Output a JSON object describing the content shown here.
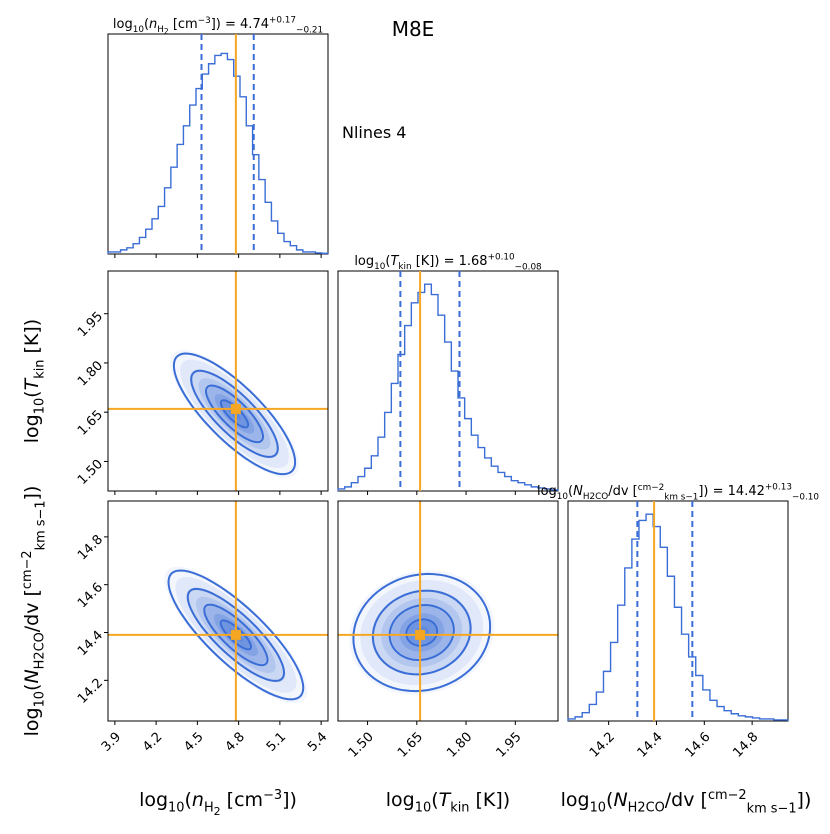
{
  "chart_data": {
    "type": "corner",
    "title": "M8E",
    "annotation": "Nlines 4",
    "colors": {
      "contour": "#3a6ed6",
      "truth": "#f5a623",
      "fill": "#3a6ed6",
      "axis": "#000000"
    },
    "params": [
      {
        "id": "nH2",
        "label": {
          "pre": "log",
          "sub1": "10",
          "mid": "(n",
          "sub2": "H",
          "sub3": "2",
          "post": " [cm",
          "sup": "−3",
          "end": "])"
        },
        "title": {
          "pre": "log",
          "sub1": "10",
          "mid": "(n",
          "sub2": "H",
          "sub3": "2",
          "post": " [cm",
          "sup": "−3",
          "end": "]) = 4.74",
          "sup2": "+0.17",
          "sub4": "−0.21"
        },
        "range": [
          3.85,
          5.45
        ],
        "ticks": [
          "3.9",
          "4.2",
          "4.5",
          "4.8",
          "5.1",
          "5.4"
        ],
        "tick_values": [
          3.9,
          4.2,
          4.5,
          4.8,
          5.1,
          5.4
        ],
        "median": 4.74,
        "err_plus": 0.17,
        "err_minus": 0.21,
        "truth": 4.78,
        "hist": [
          0.01,
          0.01,
          0.02,
          0.03,
          0.05,
          0.08,
          0.12,
          0.17,
          0.23,
          0.32,
          0.42,
          0.53,
          0.62,
          0.72,
          0.8,
          0.87,
          0.92,
          0.96,
          0.97,
          0.94,
          0.86,
          0.76,
          0.62,
          0.48,
          0.36,
          0.25,
          0.16,
          0.1,
          0.06,
          0.04,
          0.02,
          0.01,
          0.01,
          0.005,
          0.003
        ]
      },
      {
        "id": "Tkin",
        "label": {
          "pre": "log",
          "sub1": "10",
          "mid": "(T",
          "sub2": "kin",
          "post": " [K])"
        },
        "title": {
          "pre": "log",
          "sub1": "10",
          "mid": "(T",
          "sub2": "kin",
          "post": " [K]) = 1.68",
          "sup2": "+0.10",
          "sub4": "−0.08"
        },
        "range": [
          1.41,
          2.08
        ],
        "ticks": [
          "1.50",
          "1.65",
          "1.80",
          "1.95"
        ],
        "tick_values": [
          1.5,
          1.65,
          1.8,
          1.95
        ],
        "median": 1.68,
        "err_plus": 0.1,
        "err_minus": 0.08,
        "truth": 1.66,
        "hist": [
          0.01,
          0.02,
          0.04,
          0.07,
          0.11,
          0.17,
          0.26,
          0.38,
          0.52,
          0.66,
          0.8,
          0.91,
          0.96,
          1.0,
          0.95,
          0.85,
          0.72,
          0.58,
          0.45,
          0.35,
          0.27,
          0.21,
          0.16,
          0.12,
          0.09,
          0.07,
          0.05,
          0.04,
          0.03,
          0.02,
          0.015,
          0.01,
          0.005
        ]
      },
      {
        "id": "NH2CO",
        "label": {
          "pre": "log",
          "sub1": "10",
          "mid": "(N",
          "sub2": "H2CO",
          "post": "/dv [",
          "frac_num": "cm−2",
          "frac_den": "km s−1",
          "end": "])"
        },
        "title": {
          "pre": "log",
          "sub1": "10",
          "mid": "(N",
          "sub2": "H2CO",
          "post": "/dv [",
          "frac_num": "cm−2",
          "frac_den": "km s−1",
          "end": "]) = 14.42",
          "sup2": "+0.13",
          "sub4": "−0.10"
        },
        "range": [
          14.03,
          14.95
        ],
        "ticks": [
          "14.2",
          "14.4",
          "14.6",
          "14.8"
        ],
        "tick_values": [
          14.2,
          14.4,
          14.6,
          14.8
        ],
        "median": 14.42,
        "err_plus": 0.13,
        "err_minus": 0.1,
        "truth": 14.39,
        "hist": [
          0.01,
          0.02,
          0.04,
          0.08,
          0.14,
          0.24,
          0.38,
          0.56,
          0.74,
          0.88,
          0.97,
          1.0,
          0.94,
          0.84,
          0.7,
          0.55,
          0.42,
          0.31,
          0.22,
          0.15,
          0.1,
          0.07,
          0.05,
          0.035,
          0.025,
          0.02,
          0.015,
          0.01,
          0.01,
          0.005,
          0.005
        ]
      }
    ],
    "correlations": [
      {
        "x": "nH2",
        "y": "Tkin",
        "center": [
          4.77,
          1.645
        ],
        "sd": [
          0.18,
          0.075
        ],
        "rho": -0.8
      },
      {
        "x": "nH2",
        "y": "NH2CO",
        "center": [
          4.78,
          14.39
        ],
        "sd": [
          0.2,
          0.11
        ],
        "rho": -0.82
      },
      {
        "x": "Tkin",
        "y": "NH2CO",
        "center": [
          1.665,
          14.4
        ],
        "sd": [
          0.085,
          0.1
        ],
        "rho": 0.1
      }
    ]
  }
}
